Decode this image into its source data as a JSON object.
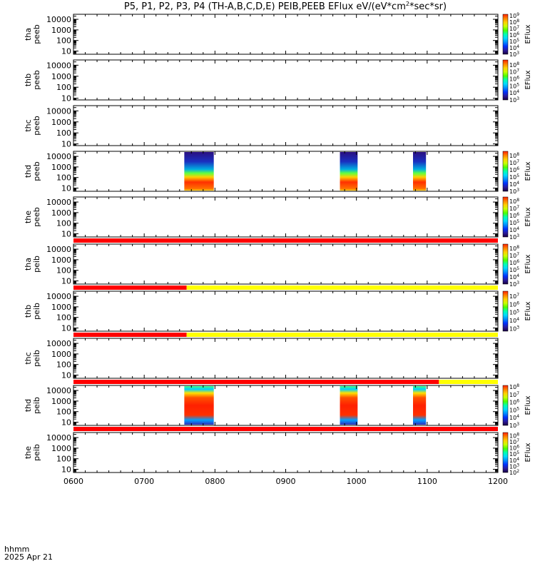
{
  "title": "P5, P1, P2, P3, P4 (TH-A,B,C,D,E) PEIB,PEEB EFlux eV/(eV*cm",
  "title_sup": "2",
  "title_end": "*sec*sr)",
  "footer": {
    "hhmm": "hhmm",
    "date": "2025 Apr 21"
  },
  "colorbar_unit": "EFlux",
  "colors": {
    "red_bar": "#ff0000",
    "yellow_bar": "#ffff00",
    "spectrogram_cmap": [
      "#1a0040",
      "#2a1a9e",
      "#0030ff",
      "#008cff",
      "#00d9ff",
      "#00ffb0",
      "#4cff00",
      "#c8ff00",
      "#ffd000",
      "#ff8000",
      "#ff2000"
    ]
  },
  "chart_data": {
    "type": "heatmap",
    "x_axis": {
      "label": "hhmm",
      "range": [
        "0600",
        "1200"
      ],
      "ticks": [
        "0600",
        "0700",
        "0800",
        "0900",
        "1000",
        "1100",
        "1200"
      ]
    },
    "y_axis_log": true,
    "panels": [
      {
        "probe": "tha",
        "product": "peeb",
        "ymin": 5,
        "ymax": 30000,
        "yticks": [
          "10",
          "100",
          "1000",
          "10000"
        ],
        "cbar": {
          "min": 3,
          "max": 9.2,
          "ticks": [
            "10^3",
            "10^4",
            "10^5",
            "10^6",
            "10^7",
            "10^8",
            "10^9"
          ]
        },
        "blocks": [],
        "status_bar": []
      },
      {
        "probe": "thb",
        "product": "peeb",
        "ymin": 7,
        "ymax": 30000,
        "yticks": [
          "10",
          "100",
          "1000",
          "10000"
        ],
        "cbar": {
          "min": 3,
          "max": 8.7,
          "ticks": [
            "10^3",
            "10^4",
            "10^5",
            "10^6",
            "10^7",
            "10^8"
          ]
        },
        "blocks": [],
        "status_bar": []
      },
      {
        "probe": "thc",
        "product": "peeb",
        "ymin": 7,
        "ymax": 30000,
        "yticks": [
          "10",
          "100",
          "1000",
          "10000"
        ],
        "cbar": null,
        "blocks": [],
        "status_bar": []
      },
      {
        "probe": "thd",
        "product": "peeb",
        "ymin": 5,
        "ymax": 30000,
        "yticks": [
          "10",
          "100",
          "1000",
          "10000"
        ],
        "cbar": {
          "min": 3,
          "max": 8.6,
          "ticks": [
            "10^3",
            "10^4",
            "10^5",
            "10^6",
            "10^7",
            "10^8"
          ]
        },
        "blocks": [
          {
            "start": "0734",
            "end": "0759"
          },
          {
            "start": "0946",
            "end": "1001"
          },
          {
            "start": "1048",
            "end": "1059"
          }
        ],
        "status_bar": []
      },
      {
        "probe": "the",
        "product": "peeb",
        "ymin": 5,
        "ymax": 30000,
        "yticks": [
          "10",
          "100",
          "1000",
          "10000"
        ],
        "cbar": {
          "min": 3,
          "max": 8.6,
          "ticks": [
            "10^3",
            "10^4",
            "10^5",
            "10^6",
            "10^7",
            "10^8"
          ]
        },
        "blocks": [],
        "status_bar": [
          {
            "start": "0600",
            "end": "1200",
            "color": "red"
          }
        ]
      },
      {
        "probe": "tha",
        "product": "peib",
        "ymin": 5,
        "ymax": 30000,
        "yticks": [
          "10",
          "100",
          "1000",
          "10000"
        ],
        "cbar": {
          "min": 3,
          "max": 8.6,
          "ticks": [
            "10^3",
            "10^4",
            "10^5",
            "10^6",
            "10^7",
            "10^8"
          ]
        },
        "blocks": [],
        "status_bar": [
          {
            "start": "0600",
            "end": "0736",
            "color": "red"
          },
          {
            "start": "0736",
            "end": "1200",
            "color": "yellow"
          }
        ]
      },
      {
        "probe": "thb",
        "product": "peib",
        "ymin": 5,
        "ymax": 30000,
        "yticks": [
          "10",
          "100",
          "1000",
          "10000"
        ],
        "cbar": {
          "min": 2.7,
          "max": 7.6,
          "ticks": [
            "10^3",
            "10^4",
            "10^5",
            "10^6",
            "10^7"
          ]
        },
        "blocks": [],
        "status_bar": [
          {
            "start": "0600",
            "end": "0736",
            "color": "red"
          },
          {
            "start": "0736",
            "end": "1200",
            "color": "yellow"
          }
        ]
      },
      {
        "probe": "thc",
        "product": "peib",
        "ymin": 5,
        "ymax": 30000,
        "yticks": [
          "10",
          "100",
          "1000",
          "10000"
        ],
        "cbar": null,
        "blocks": [],
        "status_bar": [
          {
            "start": "0600",
            "end": "1110",
            "color": "red"
          },
          {
            "start": "1110",
            "end": "1200",
            "color": "yellow"
          }
        ]
      },
      {
        "probe": "thd",
        "product": "peib",
        "ymin": 5,
        "ymax": 30000,
        "yticks": [
          "10",
          "100",
          "1000",
          "10000"
        ],
        "cbar": {
          "min": 3,
          "max": 8.2,
          "ticks": [
            "10^3",
            "10^4",
            "10^5",
            "10^6",
            "10^7",
            "10^8"
          ]
        },
        "blocks": [
          {
            "start": "0734",
            "end": "0759"
          },
          {
            "start": "0946",
            "end": "1001"
          },
          {
            "start": "1048",
            "end": "1059"
          }
        ],
        "status_bar": [
          {
            "start": "0600",
            "end": "1200",
            "color": "red"
          }
        ]
      },
      {
        "probe": "the",
        "product": "peib",
        "ymin": 5,
        "ymax": 30000,
        "yticks": [
          "10",
          "100",
          "1000",
          "10000"
        ],
        "cbar": {
          "min": 2,
          "max": 8.5,
          "ticks": [
            "10^2",
            "10^3",
            "10^4",
            "10^5",
            "10^6",
            "10^7",
            "10^8"
          ]
        },
        "blocks": [],
        "status_bar": []
      }
    ]
  }
}
